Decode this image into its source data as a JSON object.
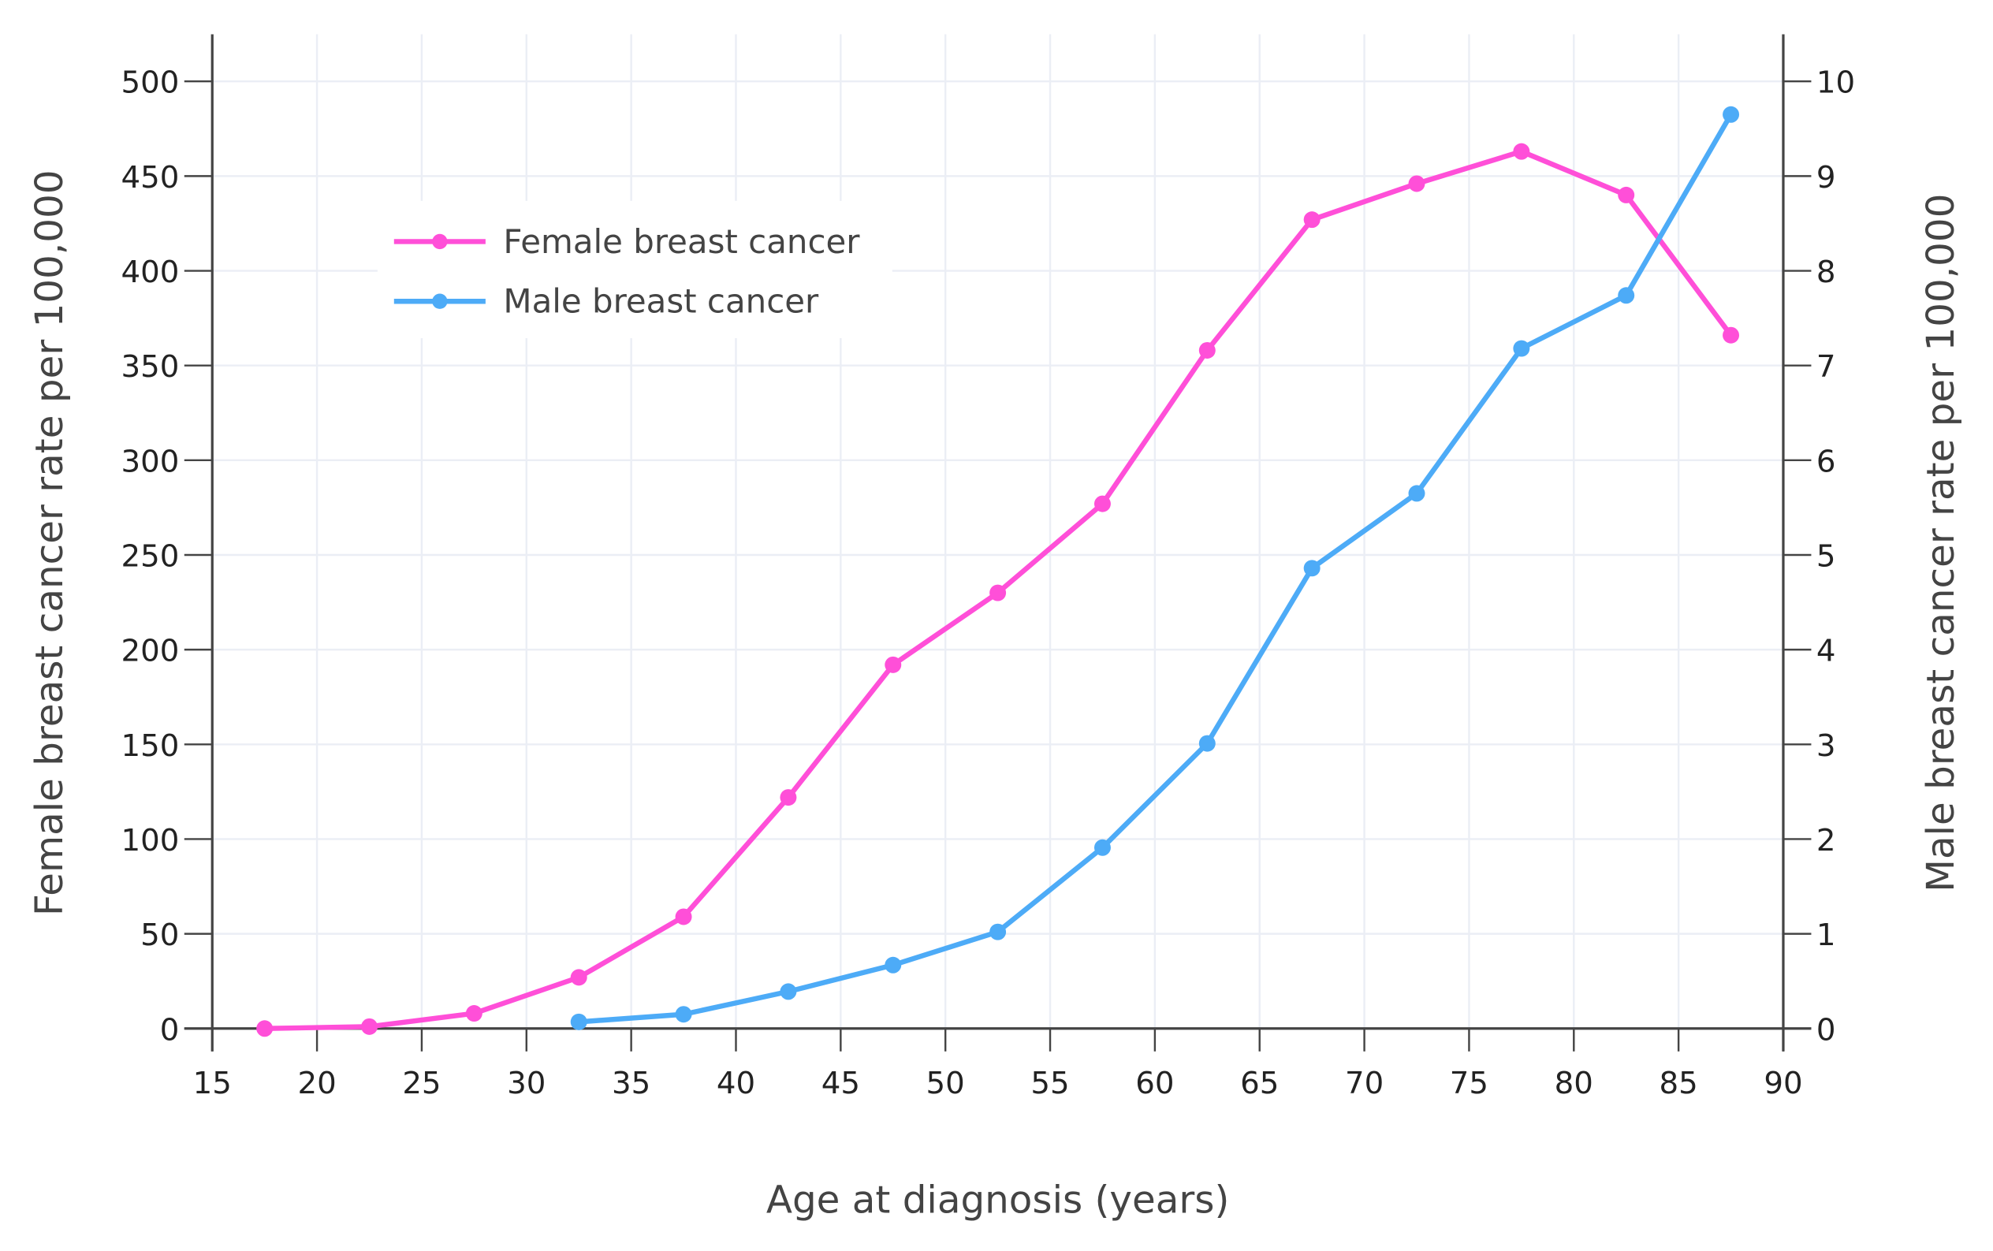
{
  "chart_data": {
    "type": "line",
    "xlabel": "Age at diagnosis (years)",
    "ylabel": "Female breast cancer rate per 100,000",
    "y2label": "Male breast cancer rate per 100,000",
    "xlim": [
      15,
      90
    ],
    "ylim": [
      0,
      520
    ],
    "y2lim": [
      0,
      10.4
    ],
    "xticks": [
      15,
      20,
      25,
      30,
      35,
      40,
      45,
      50,
      55,
      60,
      65,
      70,
      75,
      80,
      85,
      90
    ],
    "yticks": [
      0,
      50,
      100,
      150,
      200,
      250,
      300,
      350,
      400,
      450,
      500
    ],
    "y2ticks": [
      0,
      1,
      2,
      3,
      4,
      5,
      6,
      7,
      8,
      9,
      10
    ],
    "grid": true,
    "legend_placement": "top-left",
    "series": [
      {
        "name": "Female breast cancer",
        "axis": "left",
        "color": "#FF4FD8",
        "x": [
          17.5,
          22.5,
          27.5,
          32.5,
          37.5,
          42.5,
          47.5,
          52.5,
          57.5,
          62.5,
          67.5,
          72.5,
          77.5,
          82.5,
          87.5
        ],
        "values": [
          0,
          1,
          8,
          27,
          59,
          122,
          192,
          230,
          277,
          358,
          427,
          446,
          463,
          440,
          366
        ]
      },
      {
        "name": "Male breast cancer",
        "axis": "right",
        "color": "#4DABF7",
        "x": [
          32.5,
          37.5,
          42.5,
          47.5,
          52.5,
          57.5,
          62.5,
          67.5,
          72.5,
          77.5,
          82.5,
          87.5
        ],
        "values": [
          0.07,
          0.15,
          0.39,
          0.67,
          1.02,
          1.91,
          3.01,
          4.86,
          5.65,
          7.18,
          7.74,
          9.65
        ]
      }
    ]
  }
}
